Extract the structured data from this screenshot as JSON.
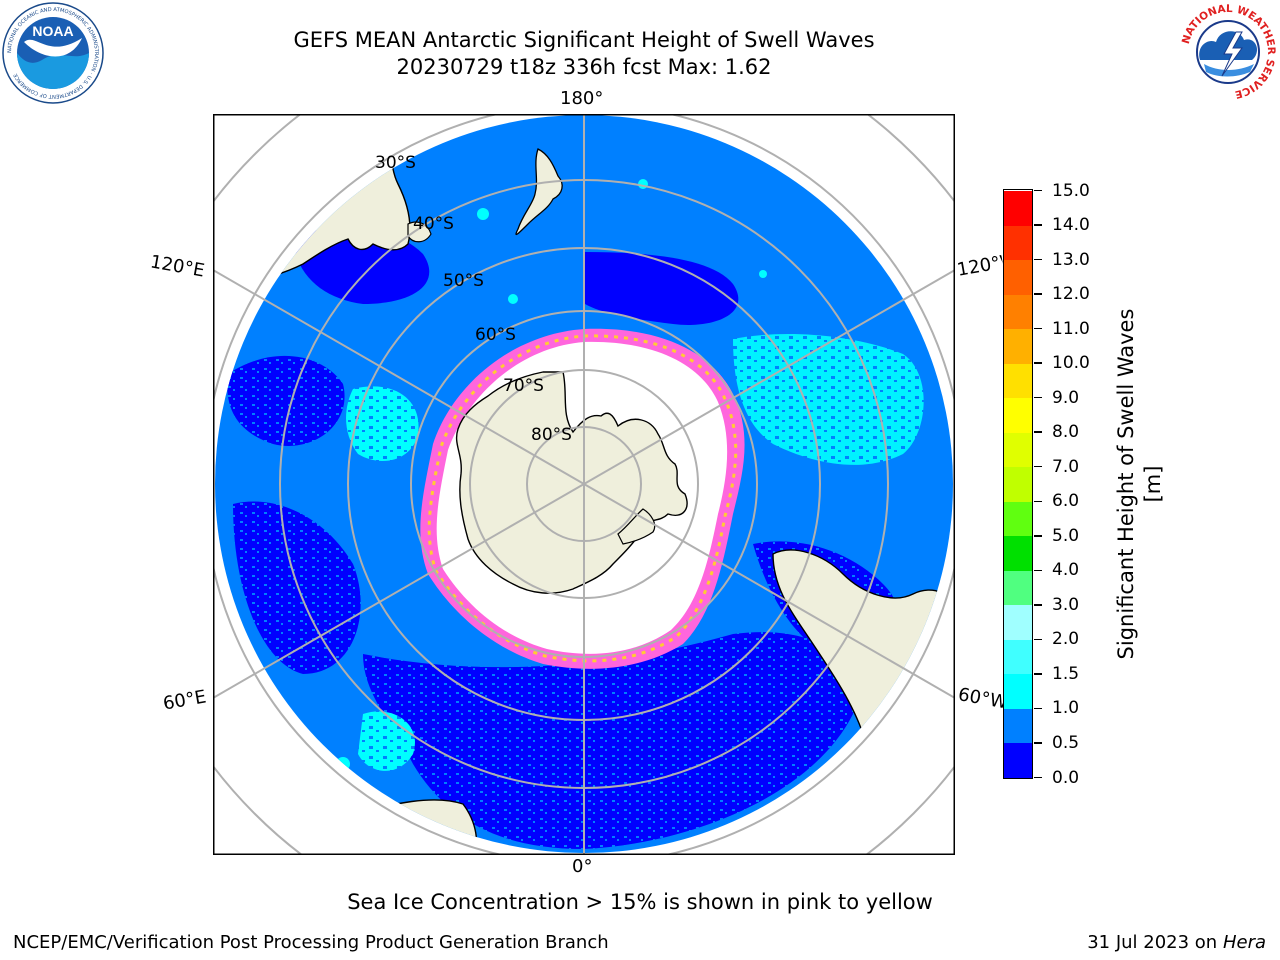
{
  "header": {
    "title_line1": "GEFS MEAN Antarctic Significant Height of Swell Waves",
    "title_line2": "20230729 t18z 336h fcst   Max: 1.62"
  },
  "logos": {
    "noaa_text": "NOAA",
    "noaa_ring_text": "NATIONAL OCEANIC AND ATMOSPHERIC ADMINISTRATION · U.S. DEPARTMENT OF COMMERCE",
    "nws_ring_text": "NATIONAL WEATHER SERVICE"
  },
  "map": {
    "projection": "south-polar-stereographic",
    "longitude_labels": {
      "top": "180°",
      "bottom": "0°",
      "upper_left": "120°E",
      "upper_right": "120°W",
      "lower_left": "60°E",
      "lower_right": "60°W"
    },
    "latitude_labels": [
      "30°S",
      "40°S",
      "50°S",
      "60°S",
      "70°S",
      "80°S"
    ],
    "colors": {
      "land": "#efefdc",
      "ocean_0_05": "#0000ff",
      "ocean_05_1": "#0080ff",
      "ocean_1_15": "#00ffff",
      "ocean_15_2": "#40ffff",
      "ice_edge_pink": "#ff66dd",
      "ice_edge_yellow": "#ffcc33",
      "sea_ice": "#ffffff",
      "grid": "#b0b0b0"
    }
  },
  "colorbar": {
    "title": "Significant Height of Swell Waves [m]",
    "ticks": [
      "0.0",
      "0.5",
      "1.0",
      "1.5",
      "2.0",
      "3.0",
      "4.0",
      "5.0",
      "6.0",
      "7.0",
      "8.0",
      "9.0",
      "10.0",
      "11.0",
      "12.0",
      "13.0",
      "14.0",
      "15.0"
    ],
    "colors": [
      "#0000ff",
      "#0080ff",
      "#00ffff",
      "#40ffff",
      "#a0ffff",
      "#50ff80",
      "#00e000",
      "#60ff10",
      "#c0ff00",
      "#e0ff00",
      "#ffff00",
      "#ffe000",
      "#ffb000",
      "#ff8000",
      "#ff6000",
      "#ff3000",
      "#ff0000"
    ]
  },
  "footer": {
    "note": "Sea Ice Concentration > 15% is shown in pink to yellow",
    "left": "NCEP/EMC/Verification Post Processing Product Generation Branch",
    "right_date": "31 Jul 2023 on ",
    "right_machine": "Hera"
  }
}
